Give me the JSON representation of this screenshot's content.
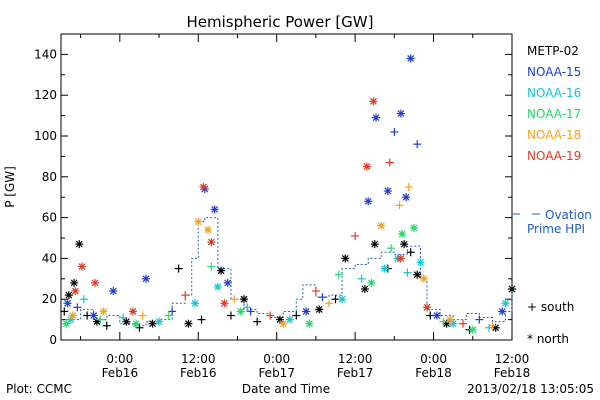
{
  "chart_data": {
    "type": "scatter",
    "title": "Hemispheric Power [GW]",
    "ylabel": "P [GW]",
    "xlabel": "Date and Time",
    "ylim": [
      0,
      150
    ],
    "y_ticks": [
      0,
      20,
      40,
      60,
      80,
      100,
      120,
      140
    ],
    "xlim_hours": [
      -9,
      60
    ],
    "x_ticks": [
      {
        "hour": 0,
        "time": "0:00",
        "date": "Feb16"
      },
      {
        "hour": 12,
        "time": "12:00",
        "date": "Feb16"
      },
      {
        "hour": 24,
        "time": "0:00",
        "date": "Feb17"
      },
      {
        "hour": 36,
        "time": "12:00",
        "date": "Feb17"
      },
      {
        "hour": 48,
        "time": "0:00",
        "date": "Feb18"
      },
      {
        "hour": 60,
        "time": "12:00",
        "date": "Feb18"
      }
    ],
    "legend_position": "right",
    "series": [
      {
        "name": "METP-02",
        "color": "#000000",
        "points": [
          {
            "x": -8.5,
            "y": 14,
            "m": "south"
          },
          {
            "x": -7.8,
            "y": 22,
            "m": "north"
          },
          {
            "x": -7.0,
            "y": 28,
            "m": "north"
          },
          {
            "x": -6.2,
            "y": 47,
            "m": "north"
          },
          {
            "x": -5.0,
            "y": 12,
            "m": "south"
          },
          {
            "x": -3.5,
            "y": 9,
            "m": "north"
          },
          {
            "x": -2.0,
            "y": 7,
            "m": "south"
          },
          {
            "x": 1.0,
            "y": 9,
            "m": "north"
          },
          {
            "x": 3.0,
            "y": 6,
            "m": "south"
          },
          {
            "x": 5.0,
            "y": 8,
            "m": "north"
          },
          {
            "x": 9.0,
            "y": 35,
            "m": "south"
          },
          {
            "x": 10.5,
            "y": 8,
            "m": "north"
          },
          {
            "x": 12.5,
            "y": 10,
            "m": "south"
          },
          {
            "x": 15.5,
            "y": 34,
            "m": "north"
          },
          {
            "x": 17.0,
            "y": 12,
            "m": "south"
          },
          {
            "x": 19.0,
            "y": 20,
            "m": "north"
          },
          {
            "x": 21.0,
            "y": 9,
            "m": "south"
          },
          {
            "x": 24.5,
            "y": 10,
            "m": "north"
          },
          {
            "x": 27.0,
            "y": 12,
            "m": "south"
          },
          {
            "x": 30.5,
            "y": 15,
            "m": "north"
          },
          {
            "x": 33.0,
            "y": 20,
            "m": "south"
          },
          {
            "x": 34.5,
            "y": 40,
            "m": "north"
          },
          {
            "x": 37.5,
            "y": 25,
            "m": "north"
          },
          {
            "x": 39.0,
            "y": 47,
            "m": "north"
          },
          {
            "x": 41.0,
            "y": 35,
            "m": "south"
          },
          {
            "x": 43.5,
            "y": 47,
            "m": "north"
          },
          {
            "x": 44.5,
            "y": 43,
            "m": "south"
          },
          {
            "x": 45.5,
            "y": 32,
            "m": "north"
          },
          {
            "x": 47.5,
            "y": 12,
            "m": "south"
          },
          {
            "x": 50.0,
            "y": 8,
            "m": "north"
          },
          {
            "x": 53.5,
            "y": 5,
            "m": "south"
          },
          {
            "x": 57.5,
            "y": 6,
            "m": "north"
          },
          {
            "x": 60.0,
            "y": 25,
            "m": "north"
          }
        ]
      },
      {
        "name": "NOAA-15",
        "color": "#1f3fd0",
        "points": [
          {
            "x": -8.0,
            "y": 18,
            "m": "north"
          },
          {
            "x": -6.5,
            "y": 16,
            "m": "south"
          },
          {
            "x": -4.0,
            "y": 12,
            "m": "north"
          },
          {
            "x": -1.0,
            "y": 24,
            "m": "north"
          },
          {
            "x": 4.0,
            "y": 30,
            "m": "north"
          },
          {
            "x": 8.0,
            "y": 14,
            "m": "south"
          },
          {
            "x": 13.0,
            "y": 74,
            "m": "north"
          },
          {
            "x": 14.5,
            "y": 64,
            "m": "north"
          },
          {
            "x": 16.5,
            "y": 28,
            "m": "north"
          },
          {
            "x": 20.0,
            "y": 14,
            "m": "south"
          },
          {
            "x": 28.5,
            "y": 14,
            "m": "north"
          },
          {
            "x": 31.0,
            "y": 21,
            "m": "south"
          },
          {
            "x": 38.0,
            "y": 68,
            "m": "north"
          },
          {
            "x": 39.2,
            "y": 109,
            "m": "north"
          },
          {
            "x": 41.0,
            "y": 73,
            "m": "north"
          },
          {
            "x": 42.0,
            "y": 102,
            "m": "south"
          },
          {
            "x": 43.0,
            "y": 111,
            "m": "north"
          },
          {
            "x": 44.5,
            "y": 138,
            "m": "north"
          },
          {
            "x": 45.5,
            "y": 96,
            "m": "south"
          },
          {
            "x": 43.8,
            "y": 70,
            "m": "north"
          },
          {
            "x": 48.5,
            "y": 12,
            "m": "north"
          },
          {
            "x": 55.0,
            "y": 10,
            "m": "south"
          },
          {
            "x": 58.5,
            "y": 14,
            "m": "north"
          }
        ]
      },
      {
        "name": "NOAA-16",
        "color": "#17c4d4",
        "points": [
          {
            "x": -7.5,
            "y": 10,
            "m": "north"
          },
          {
            "x": -5.5,
            "y": 20,
            "m": "south"
          },
          {
            "x": 0.5,
            "y": 11,
            "m": "south"
          },
          {
            "x": 6.0,
            "y": 9,
            "m": "north"
          },
          {
            "x": 11.5,
            "y": 18,
            "m": "north"
          },
          {
            "x": 15.0,
            "y": 26,
            "m": "north"
          },
          {
            "x": 19.5,
            "y": 16,
            "m": "south"
          },
          {
            "x": 26.0,
            "y": 10,
            "m": "north"
          },
          {
            "x": 34.0,
            "y": 20,
            "m": "north"
          },
          {
            "x": 37.0,
            "y": 30,
            "m": "south"
          },
          {
            "x": 40.5,
            "y": 35,
            "m": "north"
          },
          {
            "x": 42.5,
            "y": 40,
            "m": "north"
          },
          {
            "x": 44.0,
            "y": 33,
            "m": "south"
          },
          {
            "x": 46.0,
            "y": 38,
            "m": "north"
          },
          {
            "x": 51.0,
            "y": 8,
            "m": "north"
          },
          {
            "x": 56.5,
            "y": 6,
            "m": "south"
          },
          {
            "x": 59.0,
            "y": 18,
            "m": "north"
          }
        ]
      },
      {
        "name": "NOAA-17",
        "color": "#22d86a",
        "points": [
          {
            "x": -8.2,
            "y": 8,
            "m": "north"
          },
          {
            "x": -3.0,
            "y": 10,
            "m": "south"
          },
          {
            "x": 2.5,
            "y": 8,
            "m": "north"
          },
          {
            "x": 7.5,
            "y": 12,
            "m": "south"
          },
          {
            "x": 14.0,
            "y": 36,
            "m": "south"
          },
          {
            "x": 18.5,
            "y": 14,
            "m": "north"
          },
          {
            "x": 29.0,
            "y": 8,
            "m": "north"
          },
          {
            "x": 33.5,
            "y": 32,
            "m": "south"
          },
          {
            "x": 38.5,
            "y": 28,
            "m": "north"
          },
          {
            "x": 41.5,
            "y": 45,
            "m": "south"
          },
          {
            "x": 43.2,
            "y": 52,
            "m": "north"
          },
          {
            "x": 45.0,
            "y": 55,
            "m": "north"
          },
          {
            "x": 49.5,
            "y": 9,
            "m": "south"
          },
          {
            "x": 54.0,
            "y": 5,
            "m": "north"
          }
        ]
      },
      {
        "name": "NOAA-18",
        "color": "#f5a020",
        "points": [
          {
            "x": -7.2,
            "y": 12,
            "m": "north"
          },
          {
            "x": -2.5,
            "y": 14,
            "m": "north"
          },
          {
            "x": 3.5,
            "y": 12,
            "m": "south"
          },
          {
            "x": 12.0,
            "y": 58,
            "m": "north"
          },
          {
            "x": 13.5,
            "y": 54,
            "m": "north"
          },
          {
            "x": 17.5,
            "y": 20,
            "m": "south"
          },
          {
            "x": 25.0,
            "y": 8,
            "m": "north"
          },
          {
            "x": 32.0,
            "y": 18,
            "m": "south"
          },
          {
            "x": 40.0,
            "y": 56,
            "m": "north"
          },
          {
            "x": 42.8,
            "y": 66,
            "m": "south"
          },
          {
            "x": 44.2,
            "y": 75,
            "m": "south"
          },
          {
            "x": 46.5,
            "y": 30,
            "m": "north"
          },
          {
            "x": 50.5,
            "y": 10,
            "m": "north"
          },
          {
            "x": 57.0,
            "y": 7,
            "m": "south"
          }
        ]
      },
      {
        "name": "NOAA-19",
        "color": "#e03a22",
        "points": [
          {
            "x": -6.8,
            "y": 24,
            "m": "north"
          },
          {
            "x": -5.8,
            "y": 36,
            "m": "north"
          },
          {
            "x": -3.8,
            "y": 28,
            "m": "north"
          },
          {
            "x": 2.0,
            "y": 14,
            "m": "north"
          },
          {
            "x": 10.0,
            "y": 22,
            "m": "south"
          },
          {
            "x": 12.8,
            "y": 75,
            "m": "north"
          },
          {
            "x": 14.0,
            "y": 48,
            "m": "north"
          },
          {
            "x": 16.0,
            "y": 18,
            "m": "north"
          },
          {
            "x": 23.0,
            "y": 12,
            "m": "south"
          },
          {
            "x": 30.0,
            "y": 24,
            "m": "south"
          },
          {
            "x": 36.0,
            "y": 51,
            "m": "south"
          },
          {
            "x": 37.8,
            "y": 85,
            "m": "north"
          },
          {
            "x": 38.8,
            "y": 117,
            "m": "north"
          },
          {
            "x": 41.3,
            "y": 87,
            "m": "south"
          },
          {
            "x": 43.0,
            "y": 40,
            "m": "north"
          },
          {
            "x": 47.0,
            "y": 16,
            "m": "north"
          },
          {
            "x": 52.5,
            "y": 8,
            "m": "south"
          }
        ]
      }
    ],
    "ovation": {
      "name": "Ovation Prime HPI",
      "legend_lines": [
        "Ovation",
        "Prime HPI"
      ],
      "color": "#1f5fc8",
      "points": [
        [
          -9,
          10
        ],
        [
          -6,
          15
        ],
        [
          -4,
          10
        ],
        [
          -2,
          12
        ],
        [
          0,
          8
        ],
        [
          2,
          7
        ],
        [
          4,
          9
        ],
        [
          6,
          10
        ],
        [
          8,
          18
        ],
        [
          10,
          22
        ],
        [
          11,
          40
        ],
        [
          12,
          58
        ],
        [
          13,
          60
        ],
        [
          15,
          35
        ],
        [
          17,
          20
        ],
        [
          19,
          15
        ],
        [
          21,
          13
        ],
        [
          23,
          11
        ],
        [
          25,
          14
        ],
        [
          27,
          20
        ],
        [
          28,
          27
        ],
        [
          30,
          21
        ],
        [
          32,
          22
        ],
        [
          34,
          35
        ],
        [
          36,
          37
        ],
        [
          38,
          40
        ],
        [
          40,
          43
        ],
        [
          42,
          42
        ],
        [
          44,
          46
        ],
        [
          46,
          30
        ],
        [
          47,
          15
        ],
        [
          49,
          12
        ],
        [
          51,
          10
        ],
        [
          53,
          13
        ],
        [
          55,
          11
        ],
        [
          57,
          9
        ],
        [
          59,
          14
        ],
        [
          60,
          26
        ]
      ]
    },
    "marker_legend": [
      {
        "key": "south",
        "label": "+ south"
      },
      {
        "key": "north",
        "label": "* north"
      }
    ]
  },
  "footer": {
    "plot_source": "Plot: CCMC",
    "timestamp": "2013/02/18 13:05:05"
  }
}
